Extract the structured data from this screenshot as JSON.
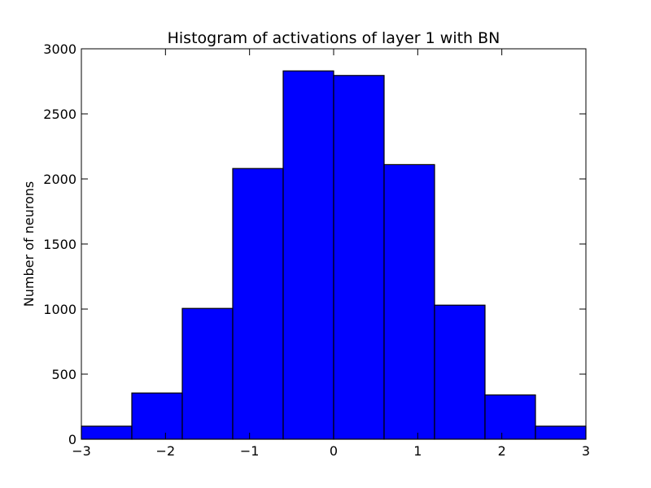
{
  "chart_data": {
    "type": "bar",
    "title": "Histogram of activations of layer 1  with BN",
    "xlabel": "",
    "ylabel": "Number of neurons",
    "xlim": [
      -3,
      3
    ],
    "ylim": [
      0,
      3000
    ],
    "bin_edges": [
      -3.0,
      -2.4,
      -1.8,
      -1.2,
      -0.6,
      0.0,
      0.6,
      1.2,
      1.8,
      2.4,
      3.0
    ],
    "values": [
      100,
      355,
      1005,
      2080,
      2830,
      2795,
      2110,
      1030,
      340,
      100
    ],
    "xticks": [
      -3,
      -2,
      -1,
      0,
      1,
      2,
      3
    ],
    "xtick_labels": [
      "−3",
      "−2",
      "−1",
      "0",
      "1",
      "2",
      "3"
    ],
    "yticks": [
      0,
      500,
      1000,
      1500,
      2000,
      2500,
      3000
    ],
    "ytick_labels": [
      "0",
      "500",
      "1000",
      "1500",
      "2000",
      "2500",
      "3000"
    ],
    "bar_color": "#0000ff",
    "edge_color": "#000000",
    "grid": false,
    "legend": false
  }
}
